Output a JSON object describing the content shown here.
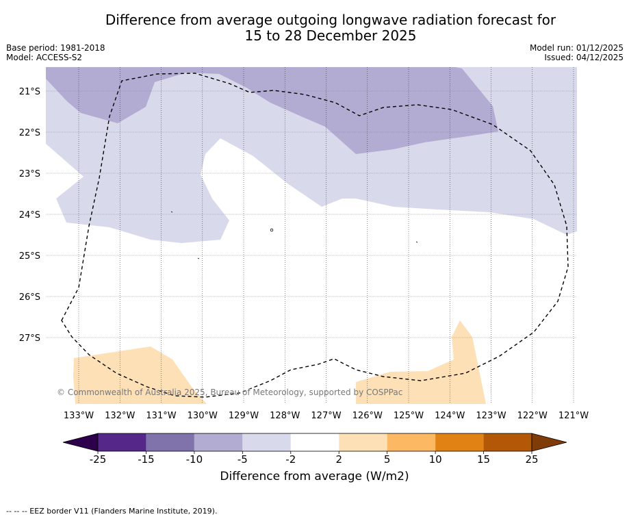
{
  "title": {
    "line1": "Difference from average outgoing longwave radiation forecast for",
    "line2": "15 to 28 December 2025"
  },
  "meta": {
    "base_period": "Base period: 1981-2018",
    "model": "Model: ACCESS-S2",
    "model_run": "Model run: 01/12/2025",
    "issued": "Issued: 04/12/2025"
  },
  "map": {
    "lat_labels": [
      "21°S",
      "22°S",
      "23°S",
      "24°S",
      "25°S",
      "26°S",
      "27°S"
    ],
    "lon_labels": [
      "133°W",
      "132°W",
      "131°W",
      "130°W",
      "129°W",
      "128°W",
      "127°W",
      "126°W",
      "125°W",
      "124°W",
      "123°W",
      "122°W",
      "121°W"
    ],
    "copyright": "© Commonwealth of Australia 2025, Bureau of Meteorology, supported by COSPPac"
  },
  "colorbar": {
    "ticks": [
      "-25",
      "-15",
      "-10",
      "-5",
      "-2",
      "2",
      "5",
      "10",
      "15",
      "25"
    ],
    "colors": {
      "below_min": "#2d004b",
      "bins": [
        "#542788",
        "#8073ac",
        "#b2abd2",
        "#d8daeb",
        "#ffffff",
        "#fee0b6",
        "#fdb863",
        "#e08214",
        "#b35806"
      ],
      "above_max": "#7f3b08"
    },
    "label": "Difference from average (W/m2)"
  },
  "footnote": "-- -- -- EEZ border V11 (Flanders Marine Institute, 2019)."
}
